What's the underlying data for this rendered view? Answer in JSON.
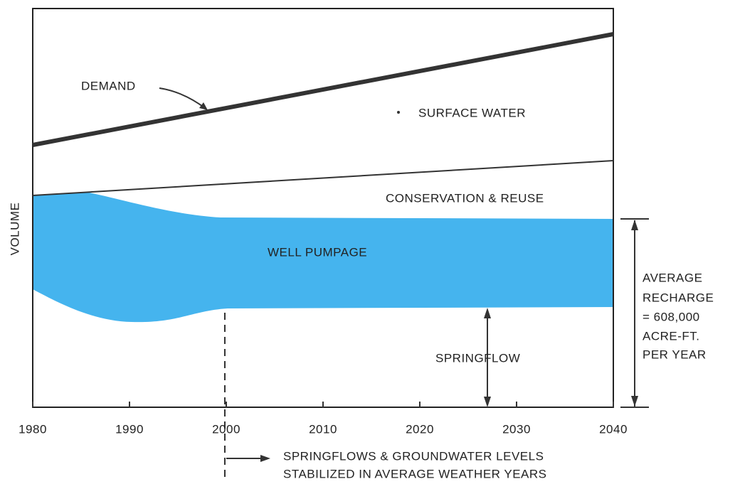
{
  "chart_data": {
    "type": "area",
    "y_label": "VOLUME",
    "xlim": [
      1980,
      2040
    ],
    "xticks": [
      1980,
      1990,
      2000,
      2010,
      2020,
      2030,
      2040
    ],
    "annotations": {
      "demand": "DEMAND",
      "surface_water": "SURFACE WATER",
      "conservation": "CONSERVATION & REUSE",
      "well_pumpage": "WELL PUMPAGE",
      "springflow": "SPRINGFLOW",
      "recharge": [
        "AVERAGE",
        "RECHARGE",
        "= 608,000",
        "ACRE-FT.",
        "PER YEAR"
      ],
      "note": [
        "SPRINGFLOWS & GROUNDWATER LEVELS",
        "STABILIZED  IN AVERAGE WEATHER YEARS"
      ]
    },
    "colors": {
      "well_pumpage": "#45b4ee",
      "lines": "#333333"
    }
  }
}
